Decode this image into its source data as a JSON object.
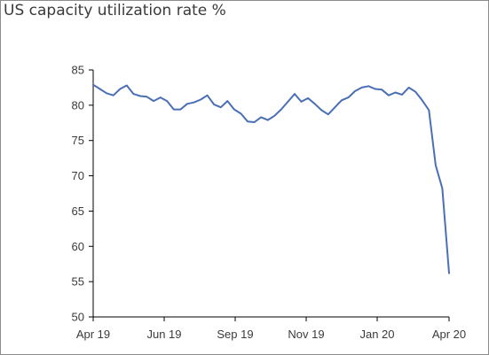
{
  "chart_data": {
    "type": "line",
    "title": "US capacity utilization rate %",
    "xlabel": "",
    "ylabel": "",
    "ylim": [
      50,
      85
    ],
    "yticks": [
      50,
      55,
      60,
      65,
      70,
      75,
      80,
      85
    ],
    "xticks": [
      "Apr 19",
      "Jun 19",
      "Sep 19",
      "Nov 19",
      "Jan 20",
      "Apr 20"
    ],
    "grid": false,
    "line_color": "#4a6fb5",
    "series": [
      {
        "values": [
          82.9,
          82.3,
          81.7,
          81.4,
          82.3,
          82.8,
          81.6,
          81.3,
          81.2,
          80.6,
          81.1,
          80.6,
          79.4,
          79.4,
          80.2,
          80.4,
          80.8,
          81.4,
          80.1,
          79.7,
          80.6,
          79.4,
          78.8,
          77.7,
          77.6,
          78.3,
          77.9,
          78.5,
          79.4,
          80.5,
          81.6,
          80.5,
          81.0,
          80.2,
          79.3,
          78.7,
          79.7,
          80.7,
          81.1,
          82.0,
          82.5,
          82.7,
          82.3,
          82.2,
          81.4,
          81.8,
          81.5,
          82.5,
          81.9,
          80.7,
          79.3,
          71.5,
          68.2,
          56.2
        ]
      }
    ]
  }
}
